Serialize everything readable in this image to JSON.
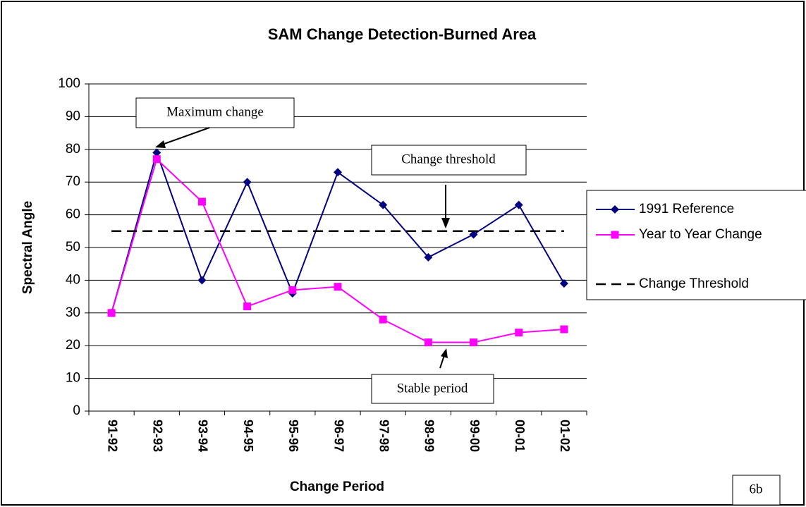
{
  "chart_data": {
    "type": "line",
    "title": "SAM Change Detection-Burned Area",
    "x_label": "Change Period",
    "y_label": "Spectral Angle",
    "categories": [
      "91-92",
      "92-93",
      "93-94",
      "94-95",
      "95-96",
      "96-97",
      "97-98",
      "98-99",
      "99-00",
      "00-01",
      "01-02"
    ],
    "series": [
      {
        "name": "1991 Reference",
        "color": "#000080",
        "marker": "diamond",
        "values": [
          30,
          79,
          40,
          70,
          36,
          73,
          63,
          47,
          54,
          63,
          39
        ]
      },
      {
        "name": "Year to Year Change",
        "color": "#ff00ff",
        "marker": "square",
        "values": [
          30,
          77,
          64,
          32,
          37,
          38,
          28,
          21,
          21,
          24,
          25
        ]
      },
      {
        "name": "Change Threshold",
        "color": "#000000",
        "dash": true,
        "values": [
          55,
          55,
          55,
          55,
          55,
          55,
          55,
          55,
          55,
          55,
          55
        ]
      }
    ],
    "ylim": [
      0,
      100
    ],
    "yticks": [
      0,
      10,
      20,
      30,
      40,
      50,
      60,
      70,
      80,
      90,
      100
    ],
    "grid": true,
    "legend": "right",
    "annotations": [
      "Maximum change",
      "Change threshold",
      "Stable period",
      "6b"
    ]
  }
}
